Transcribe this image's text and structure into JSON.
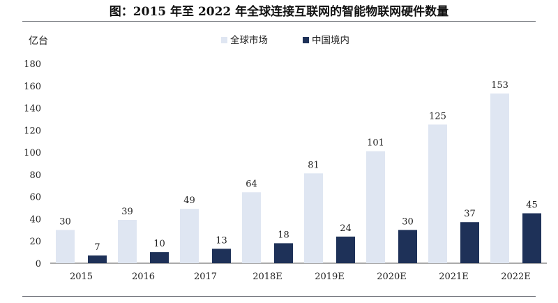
{
  "title": "图：2015 年至 2022 年全球连接互联网的智能物联网硬件数量",
  "colors": {
    "global": "#dfe6f2",
    "china": "#1e3158",
    "axis": "#555555",
    "rule": "#6d7077"
  },
  "chart_data": {
    "type": "bar",
    "title": "图：2015 年至 2022 年全球连接互联网的智能物联网硬件数量",
    "unit_label": "亿台",
    "xlabel": "",
    "ylabel": "",
    "ylim": [
      0,
      180
    ],
    "yticks": [
      0,
      20,
      40,
      60,
      80,
      100,
      120,
      140,
      160,
      180
    ],
    "grid": false,
    "legend_position": "top-center",
    "categories": [
      "2015",
      "2016",
      "2017",
      "2018E",
      "2019E",
      "2020E",
      "2021E",
      "2022E"
    ],
    "series": [
      {
        "name": "全球市场",
        "color": "#dfe6f2",
        "values": [
          30,
          39,
          49,
          64,
          81,
          101,
          125,
          153
        ]
      },
      {
        "name": "中国境内",
        "color": "#1e3158",
        "values": [
          7,
          10,
          13,
          18,
          24,
          30,
          37,
          45
        ]
      }
    ]
  }
}
